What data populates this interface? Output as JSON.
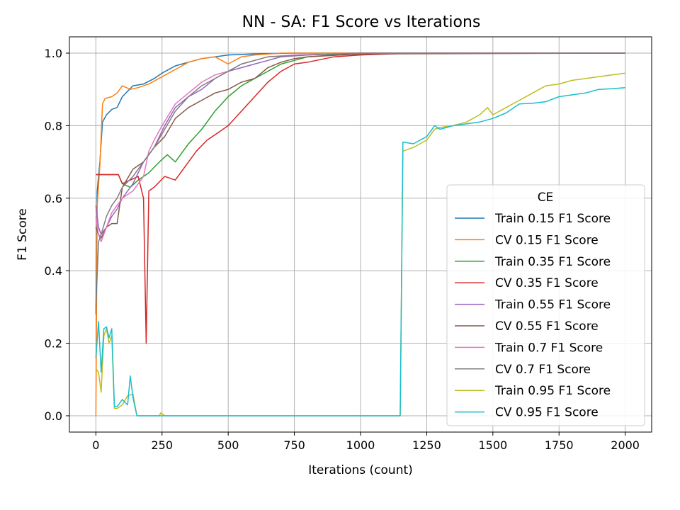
{
  "chart_data": {
    "type": "line",
    "title": "NN - SA: F1 Score vs Iterations",
    "xlabel": "Iterations (count)",
    "ylabel": "F1 Score",
    "xlim": [
      -100,
      2100
    ],
    "ylim": [
      -0.045,
      1.045
    ],
    "xticks": [
      0,
      250,
      500,
      750,
      1000,
      1250,
      1500,
      1750,
      2000
    ],
    "xtick_labels": [
      "0",
      "250",
      "500",
      "750",
      "1000",
      "1250",
      "1500",
      "1750",
      "2000"
    ],
    "yticks": [
      0.0,
      0.2,
      0.4,
      0.6,
      0.8,
      1.0
    ],
    "ytick_labels": [
      "0.0",
      "0.2",
      "0.4",
      "0.6",
      "0.8",
      "1.0"
    ],
    "grid": true,
    "legend": {
      "title": "CE",
      "placement": "lower right"
    },
    "series": [
      {
        "name": "Train 0.15 F1 Score",
        "color": "#1f77b4",
        "points": [
          [
            0,
            0.28
          ],
          [
            5,
            0.62
          ],
          [
            15,
            0.7
          ],
          [
            25,
            0.81
          ],
          [
            40,
            0.83
          ],
          [
            60,
            0.845
          ],
          [
            80,
            0.85
          ],
          [
            100,
            0.88
          ],
          [
            140,
            0.91
          ],
          [
            180,
            0.915
          ],
          [
            220,
            0.93
          ],
          [
            250,
            0.945
          ],
          [
            300,
            0.965
          ],
          [
            350,
            0.975
          ],
          [
            400,
            0.985
          ],
          [
            450,
            0.99
          ],
          [
            500,
            0.995
          ],
          [
            600,
            0.998
          ],
          [
            750,
            1.0
          ],
          [
            2000,
            1.0
          ]
        ]
      },
      {
        "name": "CV 0.15 F1 Score",
        "color": "#ff7f0e",
        "points": [
          [
            0,
            0.0
          ],
          [
            5,
            0.58
          ],
          [
            15,
            0.69
          ],
          [
            25,
            0.86
          ],
          [
            35,
            0.875
          ],
          [
            60,
            0.88
          ],
          [
            80,
            0.89
          ],
          [
            100,
            0.91
          ],
          [
            130,
            0.9
          ],
          [
            160,
            0.905
          ],
          [
            200,
            0.915
          ],
          [
            250,
            0.935
          ],
          [
            300,
            0.955
          ],
          [
            350,
            0.975
          ],
          [
            400,
            0.985
          ],
          [
            450,
            0.99
          ],
          [
            500,
            0.97
          ],
          [
            550,
            0.99
          ],
          [
            600,
            0.995
          ],
          [
            700,
            1.0
          ],
          [
            2000,
            1.0
          ]
        ]
      },
      {
        "name": "Train 0.35 F1 Score",
        "color": "#2ca02c",
        "points": [
          [
            0,
            0.665
          ],
          [
            10,
            0.665
          ],
          [
            85,
            0.665
          ],
          [
            100,
            0.64
          ],
          [
            130,
            0.63
          ],
          [
            160,
            0.65
          ],
          [
            200,
            0.67
          ],
          [
            240,
            0.7
          ],
          [
            270,
            0.72
          ],
          [
            300,
            0.7
          ],
          [
            350,
            0.75
          ],
          [
            400,
            0.79
          ],
          [
            450,
            0.84
          ],
          [
            500,
            0.88
          ],
          [
            550,
            0.91
          ],
          [
            600,
            0.93
          ],
          [
            650,
            0.95
          ],
          [
            700,
            0.97
          ],
          [
            750,
            0.98
          ],
          [
            800,
            0.99
          ],
          [
            900,
            0.995
          ],
          [
            1000,
            1.0
          ],
          [
            2000,
            1.0
          ]
        ]
      },
      {
        "name": "CV 0.35 F1 Score",
        "color": "#d62728",
        "points": [
          [
            0,
            0.665
          ],
          [
            10,
            0.665
          ],
          [
            85,
            0.665
          ],
          [
            100,
            0.64
          ],
          [
            130,
            0.65
          ],
          [
            160,
            0.66
          ],
          [
            180,
            0.6
          ],
          [
            190,
            0.2
          ],
          [
            200,
            0.62
          ],
          [
            220,
            0.63
          ],
          [
            260,
            0.66
          ],
          [
            300,
            0.65
          ],
          [
            340,
            0.69
          ],
          [
            380,
            0.73
          ],
          [
            420,
            0.76
          ],
          [
            460,
            0.78
          ],
          [
            500,
            0.8
          ],
          [
            550,
            0.84
          ],
          [
            600,
            0.88
          ],
          [
            650,
            0.92
          ],
          [
            700,
            0.95
          ],
          [
            750,
            0.97
          ],
          [
            800,
            0.975
          ],
          [
            900,
            0.99
          ],
          [
            1000,
            0.995
          ],
          [
            1200,
            1.0
          ],
          [
            2000,
            1.0
          ]
        ]
      },
      {
        "name": "Train 0.55 F1 Score",
        "color": "#9467bd",
        "points": [
          [
            0,
            0.58
          ],
          [
            10,
            0.52
          ],
          [
            20,
            0.5
          ],
          [
            40,
            0.52
          ],
          [
            60,
            0.55
          ],
          [
            80,
            0.57
          ],
          [
            100,
            0.6
          ],
          [
            140,
            0.64
          ],
          [
            180,
            0.7
          ],
          [
            220,
            0.74
          ],
          [
            260,
            0.8
          ],
          [
            300,
            0.85
          ],
          [
            350,
            0.88
          ],
          [
            400,
            0.9
          ],
          [
            450,
            0.93
          ],
          [
            500,
            0.95
          ],
          [
            550,
            0.96
          ],
          [
            600,
            0.97
          ],
          [
            650,
            0.98
          ],
          [
            700,
            0.99
          ],
          [
            800,
            0.995
          ],
          [
            1000,
            1.0
          ],
          [
            2000,
            1.0
          ]
        ]
      },
      {
        "name": "CV 0.55 F1 Score",
        "color": "#8c564b",
        "points": [
          [
            0,
            0.52
          ],
          [
            10,
            0.5
          ],
          [
            20,
            0.49
          ],
          [
            40,
            0.52
          ],
          [
            60,
            0.53
          ],
          [
            80,
            0.53
          ],
          [
            100,
            0.63
          ],
          [
            140,
            0.68
          ],
          [
            180,
            0.7
          ],
          [
            220,
            0.74
          ],
          [
            260,
            0.77
          ],
          [
            300,
            0.82
          ],
          [
            350,
            0.85
          ],
          [
            400,
            0.87
          ],
          [
            450,
            0.89
          ],
          [
            500,
            0.9
          ],
          [
            550,
            0.92
          ],
          [
            600,
            0.93
          ],
          [
            650,
            0.96
          ],
          [
            700,
            0.975
          ],
          [
            750,
            0.985
          ],
          [
            800,
            0.99
          ],
          [
            1000,
            0.998
          ],
          [
            2000,
            1.0
          ]
        ]
      },
      {
        "name": "Train 0.7 F1 Score",
        "color": "#e377c2",
        "points": [
          [
            0,
            0.55
          ],
          [
            10,
            0.5
          ],
          [
            20,
            0.48
          ],
          [
            40,
            0.52
          ],
          [
            60,
            0.56
          ],
          [
            80,
            0.58
          ],
          [
            100,
            0.6
          ],
          [
            140,
            0.62
          ],
          [
            180,
            0.66
          ],
          [
            200,
            0.73
          ],
          [
            220,
            0.76
          ],
          [
            250,
            0.8
          ],
          [
            300,
            0.86
          ],
          [
            350,
            0.89
          ],
          [
            400,
            0.92
          ],
          [
            450,
            0.94
          ],
          [
            500,
            0.95
          ],
          [
            550,
            0.97
          ],
          [
            600,
            0.98
          ],
          [
            650,
            0.99
          ],
          [
            750,
            0.995
          ],
          [
            1000,
            1.0
          ],
          [
            2000,
            1.0
          ]
        ]
      },
      {
        "name": "CV 0.7 F1 Score",
        "color": "#7f7f7f",
        "points": [
          [
            0,
            0.3
          ],
          [
            10,
            0.48
          ],
          [
            20,
            0.5
          ],
          [
            40,
            0.55
          ],
          [
            60,
            0.58
          ],
          [
            80,
            0.6
          ],
          [
            100,
            0.63
          ],
          [
            140,
            0.66
          ],
          [
            180,
            0.7
          ],
          [
            220,
            0.74
          ],
          [
            260,
            0.79
          ],
          [
            300,
            0.84
          ],
          [
            350,
            0.88
          ],
          [
            400,
            0.91
          ],
          [
            450,
            0.93
          ],
          [
            500,
            0.95
          ],
          [
            550,
            0.97
          ],
          [
            600,
            0.98
          ],
          [
            650,
            0.99
          ],
          [
            800,
            0.995
          ],
          [
            1000,
            1.0
          ],
          [
            2000,
            1.0
          ]
        ]
      },
      {
        "name": "Train 0.95 F1 Score",
        "color": "#bcbd22",
        "points": [
          [
            0,
            0.13
          ],
          [
            10,
            0.12
          ],
          [
            20,
            0.065
          ],
          [
            30,
            0.22
          ],
          [
            40,
            0.24
          ],
          [
            50,
            0.2
          ],
          [
            60,
            0.22
          ],
          [
            70,
            0.02
          ],
          [
            80,
            0.02
          ],
          [
            100,
            0.03
          ],
          [
            120,
            0.055
          ],
          [
            140,
            0.06
          ],
          [
            155,
            0.0
          ],
          [
            240,
            0.0
          ],
          [
            245,
            0.008
          ],
          [
            260,
            0.0
          ],
          [
            1150,
            0.0
          ],
          [
            1160,
            0.73
          ],
          [
            1200,
            0.74
          ],
          [
            1250,
            0.76
          ],
          [
            1280,
            0.79
          ],
          [
            1300,
            0.795
          ],
          [
            1350,
            0.8
          ],
          [
            1400,
            0.81
          ],
          [
            1450,
            0.83
          ],
          [
            1480,
            0.85
          ],
          [
            1500,
            0.83
          ],
          [
            1550,
            0.85
          ],
          [
            1600,
            0.87
          ],
          [
            1650,
            0.89
          ],
          [
            1700,
            0.91
          ],
          [
            1750,
            0.915
          ],
          [
            1800,
            0.925
          ],
          [
            1850,
            0.93
          ],
          [
            1900,
            0.935
          ],
          [
            1950,
            0.94
          ],
          [
            2000,
            0.945
          ]
        ]
      },
      {
        "name": "CV 0.95 F1 Score",
        "color": "#17becf",
        "points": [
          [
            0,
            0.16
          ],
          [
            10,
            0.26
          ],
          [
            20,
            0.12
          ],
          [
            30,
            0.24
          ],
          [
            40,
            0.245
          ],
          [
            50,
            0.215
          ],
          [
            60,
            0.24
          ],
          [
            70,
            0.025
          ],
          [
            80,
            0.025
          ],
          [
            100,
            0.045
          ],
          [
            120,
            0.03
          ],
          [
            130,
            0.11
          ],
          [
            140,
            0.05
          ],
          [
            155,
            0.0
          ],
          [
            1150,
            0.0
          ],
          [
            1160,
            0.755
          ],
          [
            1200,
            0.75
          ],
          [
            1250,
            0.77
          ],
          [
            1280,
            0.8
          ],
          [
            1300,
            0.79
          ],
          [
            1350,
            0.8
          ],
          [
            1400,
            0.805
          ],
          [
            1450,
            0.81
          ],
          [
            1500,
            0.82
          ],
          [
            1550,
            0.835
          ],
          [
            1600,
            0.86
          ],
          [
            1650,
            0.862
          ],
          [
            1700,
            0.866
          ],
          [
            1750,
            0.88
          ],
          [
            1800,
            0.885
          ],
          [
            1850,
            0.89
          ],
          [
            1900,
            0.9
          ],
          [
            1950,
            0.902
          ],
          [
            2000,
            0.905
          ]
        ]
      }
    ]
  }
}
